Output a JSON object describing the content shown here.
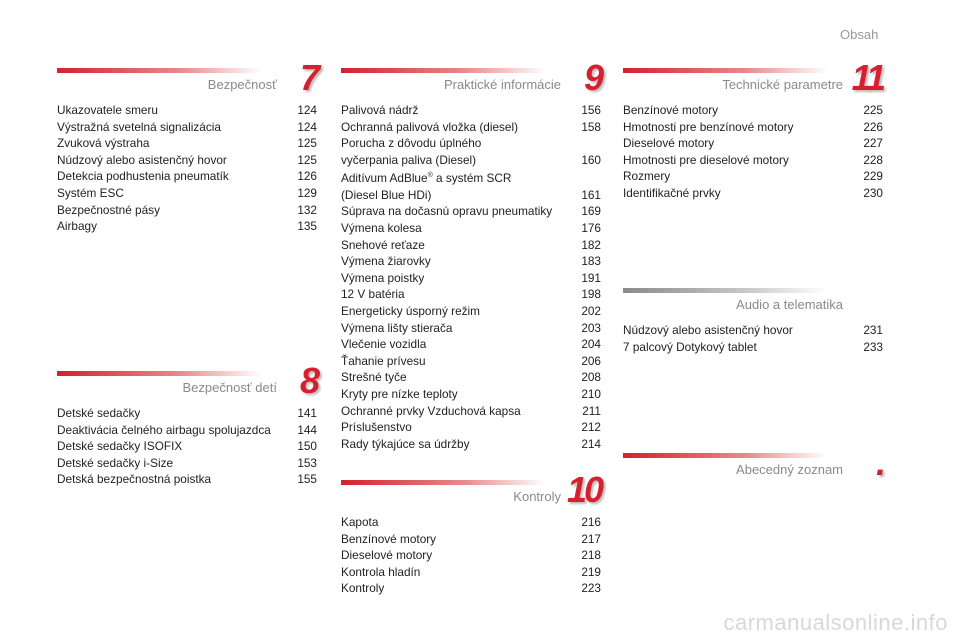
{
  "page_title": "Obsah",
  "sections": [
    {
      "number": "7",
      "title": "Bezpečnosť",
      "items": [
        {
          "label": "Ukazovatele smeru",
          "page": "124"
        },
        {
          "label": "Výstražná svetelná signalizácia",
          "page": "124"
        },
        {
          "label": "Zvuková výstraha",
          "page": "125"
        },
        {
          "label": "Núdzový alebo asistenčný hovor",
          "page": "125"
        },
        {
          "label": "Detekcia podhustenia pneumatík",
          "page": "126"
        },
        {
          "label": "Systém ESC",
          "page": "129"
        },
        {
          "label": "Bezpečnostné pásy",
          "page": "132"
        },
        {
          "label": "Airbagy",
          "page": "135"
        }
      ]
    },
    {
      "number": "8",
      "title": "Bezpečnosť detí",
      "items": [
        {
          "label": "Detské sedačky",
          "page": "141"
        },
        {
          "label": "Deaktivácia čelného airbagu spolujazdca",
          "page": "144"
        },
        {
          "label": "Detské sedačky ISOFIX",
          "page": "150"
        },
        {
          "label": "Detské sedačky i-Size",
          "page": "153"
        },
        {
          "label": "Detská bezpečnostná poistka",
          "page": "155"
        }
      ]
    },
    {
      "number": "9",
      "title": "Praktické informácie",
      "items": [
        {
          "label": "Palivová nádrž",
          "page": "156"
        },
        {
          "label": "Ochranná palivová vložka (diesel)",
          "page": "158"
        },
        {
          "label": "Porucha z dôvodu úplného\nvyčerpania paliva (Diesel)",
          "page": "160"
        },
        {
          "label": "Aditívum AdBlue® a systém SCR\n(Diesel Blue HDi)",
          "page": "161"
        },
        {
          "label": "Súprava na dočasnú opravu pneumatiky",
          "page": "169"
        },
        {
          "label": "Výmena kolesa",
          "page": "176"
        },
        {
          "label": "Snehové reťaze",
          "page": "182"
        },
        {
          "label": "Výmena žiarovky",
          "page": "183"
        },
        {
          "label": "Výmena poistky",
          "page": "191"
        },
        {
          "label": "12 V batéria",
          "page": "198"
        },
        {
          "label": "Energeticky úsporný režim",
          "page": "202"
        },
        {
          "label": "Výmena lišty stierača",
          "page": "203"
        },
        {
          "label": "Vlečenie vozidla",
          "page": "204"
        },
        {
          "label": "Ťahanie prívesu",
          "page": "206"
        },
        {
          "label": "Strešné tyče",
          "page": "208"
        },
        {
          "label": "Kryty pre nízke teploty",
          "page": "210"
        },
        {
          "label": "Ochranné prvky Vzduchová kapsa",
          "page": "211"
        },
        {
          "label": "Príslušenstvo",
          "page": "212"
        },
        {
          "label": "Rady týkajúce sa údržby",
          "page": "214"
        }
      ]
    },
    {
      "number": "10",
      "title": "Kontroly",
      "items": [
        {
          "label": "Kapota",
          "page": "216"
        },
        {
          "label": "Benzínové motory",
          "page": "217"
        },
        {
          "label": "Dieselové motory",
          "page": "218"
        },
        {
          "label": "Kontrola hladín",
          "page": "219"
        },
        {
          "label": "Kontroly",
          "page": "223"
        }
      ]
    },
    {
      "number": "11",
      "title": "Technické parametre",
      "items": [
        {
          "label": "Benzínové motory",
          "page": "225"
        },
        {
          "label": "Hmotnosti pre benzínové motory",
          "page": "226"
        },
        {
          "label": "Dieselové motory",
          "page": "227"
        },
        {
          "label": "Hmotnosti pre dieselové motory",
          "page": "228"
        },
        {
          "label": "Rozmery",
          "page": "229"
        },
        {
          "label": "Identifikačné prvky",
          "page": "230"
        }
      ]
    },
    {
      "number": "",
      "title": "Audio a telematika",
      "items": [
        {
          "label": "Núdzový alebo asistenčný hovor",
          "page": "231"
        },
        {
          "label": "7 palcový Dotykový tablet",
          "page": "233"
        }
      ]
    },
    {
      "number": ".",
      "title": "Abecedný zoznam",
      "items": []
    }
  ],
  "watermark": "carmanualsonline.info",
  "colors": {
    "accent": "#d4202f",
    "grey_bar": "#8a8a8a"
  }
}
